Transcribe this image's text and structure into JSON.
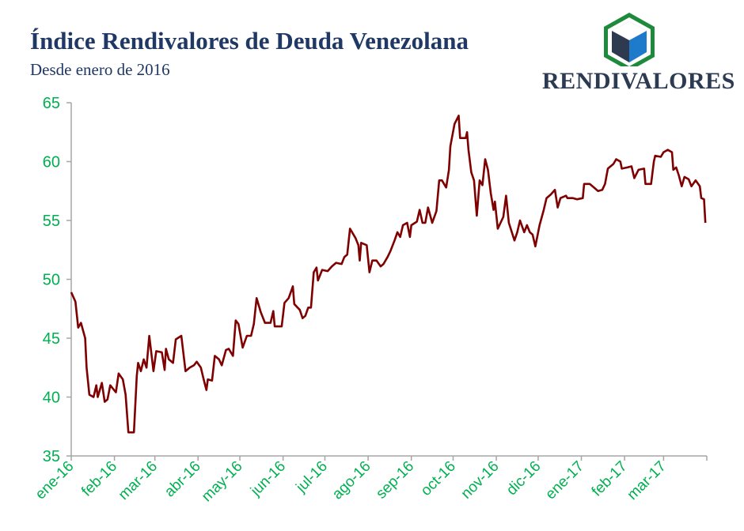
{
  "header": {
    "title": "Índice Rendivalores de Deuda Venezolana",
    "subtitle": "Desde enero de 2016"
  },
  "logo": {
    "text": "RENDIVALORES",
    "colors": {
      "hex_border": "#1e8a3c",
      "cube_dark": "#2e3a4f",
      "cube_blue": "#1e7bcb"
    }
  },
  "colors": {
    "line": "#7f0000",
    "tick_labels": "#00b050",
    "title": "#1f3864",
    "axis": "#a6a6a6"
  },
  "chart_data": {
    "type": "line",
    "title": "Índice Rendivalores de Deuda Venezolana",
    "subtitle": "Desde enero de 2016",
    "xlabel": "",
    "ylabel": "",
    "xlim": [
      "2016-01-01",
      "2017-04-01"
    ],
    "ylim": [
      35,
      65
    ],
    "yticks": [
      35,
      40,
      45,
      50,
      55,
      60,
      65
    ],
    "xticks": [
      {
        "date": "2016-01-01",
        "label": "ene-16"
      },
      {
        "date": "2016-02-01",
        "label": "feb-16"
      },
      {
        "date": "2016-03-01",
        "label": "mar-16"
      },
      {
        "date": "2016-04-01",
        "label": "abr-16"
      },
      {
        "date": "2016-05-01",
        "label": "may-16"
      },
      {
        "date": "2016-06-01",
        "label": "jun-16"
      },
      {
        "date": "2016-07-01",
        "label": "jul-16"
      },
      {
        "date": "2016-08-01",
        "label": "ago-16"
      },
      {
        "date": "2016-09-01",
        "label": "sep-16"
      },
      {
        "date": "2016-10-01",
        "label": "oct-16"
      },
      {
        "date": "2016-11-01",
        "label": "nov-16"
      },
      {
        "date": "2016-12-01",
        "label": "dic-16"
      },
      {
        "date": "2017-01-01",
        "label": "ene-17"
      },
      {
        "date": "2017-02-01",
        "label": "feb-17"
      },
      {
        "date": "2017-03-01",
        "label": "mar-17"
      },
      {
        "date": "2017-04-01",
        "label": ""
      }
    ],
    "grid": false,
    "legend": "none",
    "series": [
      {
        "color": "#7f0000",
        "points": [
          [
            "2016-01-01",
            48.9
          ],
          [
            "2016-01-04",
            48.1
          ],
          [
            "2016-01-06",
            45.9
          ],
          [
            "2016-01-08",
            46.3
          ],
          [
            "2016-01-11",
            45.0
          ],
          [
            "2016-01-12",
            42.5
          ],
          [
            "2016-01-14",
            40.2
          ],
          [
            "2016-01-17",
            40.0
          ],
          [
            "2016-01-19",
            41.0
          ],
          [
            "2016-01-20",
            40.0
          ],
          [
            "2016-01-23",
            41.2
          ],
          [
            "2016-01-25",
            39.6
          ],
          [
            "2016-01-27",
            39.8
          ],
          [
            "2016-01-29",
            41.0
          ],
          [
            "2016-02-02",
            40.4
          ],
          [
            "2016-02-04",
            42.0
          ],
          [
            "2016-02-07",
            41.5
          ],
          [
            "2016-02-09",
            40.2
          ],
          [
            "2016-02-11",
            37.0
          ],
          [
            "2016-02-15",
            37.0
          ],
          [
            "2016-02-17",
            41.8
          ],
          [
            "2016-02-18",
            42.9
          ],
          [
            "2016-02-20",
            42.2
          ],
          [
            "2016-02-22",
            43.2
          ],
          [
            "2016-02-24",
            42.5
          ],
          [
            "2016-02-26",
            45.2
          ],
          [
            "2016-02-29",
            42.2
          ],
          [
            "2016-03-02",
            43.9
          ],
          [
            "2016-03-06",
            43.8
          ],
          [
            "2016-03-08",
            42.3
          ],
          [
            "2016-03-09",
            44.1
          ],
          [
            "2016-03-11",
            43.2
          ],
          [
            "2016-03-14",
            42.9
          ],
          [
            "2016-03-16",
            44.9
          ],
          [
            "2016-03-20",
            45.2
          ],
          [
            "2016-03-23",
            42.2
          ],
          [
            "2016-03-26",
            42.5
          ],
          [
            "2016-03-29",
            42.7
          ],
          [
            "2016-03-31",
            43.0
          ],
          [
            "2016-04-03",
            42.5
          ],
          [
            "2016-04-05",
            41.5
          ],
          [
            "2016-04-07",
            40.6
          ],
          [
            "2016-04-08",
            41.5
          ],
          [
            "2016-04-11",
            41.4
          ],
          [
            "2016-04-13",
            43.5
          ],
          [
            "2016-04-16",
            43.2
          ],
          [
            "2016-04-18",
            42.7
          ],
          [
            "2016-04-21",
            44.0
          ],
          [
            "2016-04-23",
            44.1
          ],
          [
            "2016-04-26",
            43.5
          ],
          [
            "2016-04-28",
            46.5
          ],
          [
            "2016-04-30",
            46.2
          ],
          [
            "2016-05-03",
            44.2
          ],
          [
            "2016-05-06",
            45.2
          ],
          [
            "2016-05-09",
            45.2
          ],
          [
            "2016-05-11",
            46.2
          ],
          [
            "2016-05-13",
            48.4
          ],
          [
            "2016-05-16",
            47.2
          ],
          [
            "2016-05-19",
            46.3
          ],
          [
            "2016-05-23",
            46.3
          ],
          [
            "2016-05-25",
            47.3
          ],
          [
            "2016-05-26",
            46.0
          ],
          [
            "2016-05-31",
            46.0
          ],
          [
            "2016-06-02",
            48.0
          ],
          [
            "2016-06-05",
            48.4
          ],
          [
            "2016-06-08",
            49.4
          ],
          [
            "2016-06-09",
            47.9
          ],
          [
            "2016-06-13",
            47.4
          ],
          [
            "2016-06-15",
            46.7
          ],
          [
            "2016-06-17",
            46.9
          ],
          [
            "2016-06-19",
            47.6
          ],
          [
            "2016-06-21",
            47.6
          ],
          [
            "2016-06-23",
            50.6
          ],
          [
            "2016-06-25",
            51.0
          ],
          [
            "2016-06-26",
            49.9
          ],
          [
            "2016-06-29",
            50.8
          ],
          [
            "2016-07-03",
            50.7
          ],
          [
            "2016-07-06",
            51.1
          ],
          [
            "2016-07-09",
            51.4
          ],
          [
            "2016-07-13",
            51.3
          ],
          [
            "2016-07-15",
            51.9
          ],
          [
            "2016-07-17",
            52.1
          ],
          [
            "2016-07-19",
            54.3
          ],
          [
            "2016-07-23",
            53.5
          ],
          [
            "2016-07-25",
            52.9
          ],
          [
            "2016-07-26",
            51.6
          ],
          [
            "2016-07-27",
            53.1
          ],
          [
            "2016-07-31",
            52.9
          ],
          [
            "2016-08-02",
            50.6
          ],
          [
            "2016-08-04",
            51.6
          ],
          [
            "2016-08-07",
            51.6
          ],
          [
            "2016-08-10",
            51.1
          ],
          [
            "2016-08-12",
            51.3
          ],
          [
            "2016-08-15",
            51.9
          ],
          [
            "2016-08-17",
            52.4
          ],
          [
            "2016-08-20",
            53.3
          ],
          [
            "2016-08-22",
            54.0
          ],
          [
            "2016-08-24",
            53.6
          ],
          [
            "2016-08-26",
            54.6
          ],
          [
            "2016-08-29",
            54.8
          ],
          [
            "2016-08-31",
            53.6
          ],
          [
            "2016-09-01",
            54.6
          ],
          [
            "2016-09-05",
            54.9
          ],
          [
            "2016-09-07",
            55.9
          ],
          [
            "2016-09-09",
            54.8
          ],
          [
            "2016-09-11",
            54.8
          ],
          [
            "2016-09-13",
            56.1
          ],
          [
            "2016-09-16",
            54.8
          ],
          [
            "2016-09-19",
            55.8
          ],
          [
            "2016-09-21",
            58.4
          ],
          [
            "2016-09-23",
            58.4
          ],
          [
            "2016-09-26",
            57.8
          ],
          [
            "2016-09-28",
            59.3
          ],
          [
            "2016-09-29",
            61.3
          ],
          [
            "2016-10-02",
            63.2
          ],
          [
            "2016-10-05",
            63.9
          ],
          [
            "2016-10-06",
            62.0
          ],
          [
            "2016-10-10",
            62.0
          ],
          [
            "2016-10-11",
            62.5
          ],
          [
            "2016-10-12",
            61.0
          ],
          [
            "2016-10-14",
            59.1
          ],
          [
            "2016-10-16",
            58.4
          ],
          [
            "2016-10-18",
            55.4
          ],
          [
            "2016-10-20",
            58.4
          ],
          [
            "2016-10-22",
            58.0
          ],
          [
            "2016-10-24",
            60.2
          ],
          [
            "2016-10-26",
            59.3
          ],
          [
            "2016-10-28",
            57.3
          ],
          [
            "2016-10-30",
            55.9
          ],
          [
            "2016-10-31",
            56.6
          ],
          [
            "2016-11-02",
            54.3
          ],
          [
            "2016-11-04",
            54.8
          ],
          [
            "2016-11-06",
            55.3
          ],
          [
            "2016-11-08",
            57.1
          ],
          [
            "2016-11-10",
            54.8
          ],
          [
            "2016-11-14",
            53.3
          ],
          [
            "2016-11-16",
            54.0
          ],
          [
            "2016-11-18",
            55.0
          ],
          [
            "2016-11-21",
            54.0
          ],
          [
            "2016-11-23",
            54.6
          ],
          [
            "2016-11-25",
            54.0
          ],
          [
            "2016-11-27",
            53.8
          ],
          [
            "2016-11-29",
            52.8
          ],
          [
            "2016-12-02",
            54.6
          ],
          [
            "2016-12-05",
            55.9
          ],
          [
            "2016-12-07",
            56.9
          ],
          [
            "2016-12-10",
            57.2
          ],
          [
            "2016-12-13",
            57.6
          ],
          [
            "2016-12-15",
            56.1
          ],
          [
            "2016-12-17",
            56.9
          ],
          [
            "2016-12-21",
            57.1
          ],
          [
            "2016-12-22",
            56.9
          ],
          [
            "2016-12-26",
            56.9
          ],
          [
            "2016-12-29",
            56.8
          ],
          [
            "2017-01-02",
            56.9
          ],
          [
            "2017-01-03",
            58.1
          ],
          [
            "2017-01-07",
            58.1
          ],
          [
            "2017-01-10",
            57.8
          ],
          [
            "2017-01-13",
            57.5
          ],
          [
            "2017-01-16",
            57.6
          ],
          [
            "2017-01-18",
            58.1
          ],
          [
            "2017-01-20",
            59.4
          ],
          [
            "2017-01-24",
            59.8
          ],
          [
            "2017-01-26",
            60.2
          ],
          [
            "2017-01-29",
            60.0
          ],
          [
            "2017-01-30",
            59.4
          ],
          [
            "2017-02-03",
            59.5
          ],
          [
            "2017-02-06",
            59.6
          ],
          [
            "2017-02-08",
            58.6
          ],
          [
            "2017-02-11",
            59.3
          ],
          [
            "2017-02-15",
            59.4
          ],
          [
            "2017-02-16",
            58.1
          ],
          [
            "2017-02-20",
            58.1
          ],
          [
            "2017-02-22",
            60.0
          ],
          [
            "2017-02-23",
            60.5
          ],
          [
            "2017-02-27",
            60.4
          ],
          [
            "2017-03-01",
            60.8
          ],
          [
            "2017-03-04",
            61.0
          ],
          [
            "2017-03-07",
            60.8
          ],
          [
            "2017-03-08",
            59.3
          ],
          [
            "2017-03-10",
            59.5
          ],
          [
            "2017-03-12",
            58.8
          ],
          [
            "2017-03-14",
            57.9
          ],
          [
            "2017-03-16",
            58.7
          ],
          [
            "2017-03-19",
            58.5
          ],
          [
            "2017-03-21",
            57.9
          ],
          [
            "2017-03-24",
            58.4
          ],
          [
            "2017-03-27",
            57.9
          ],
          [
            "2017-03-28",
            56.9
          ],
          [
            "2017-03-30",
            56.8
          ],
          [
            "2017-03-31",
            54.8
          ]
        ]
      }
    ]
  }
}
